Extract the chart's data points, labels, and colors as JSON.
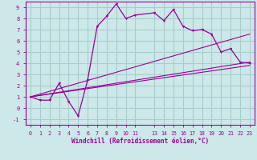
{
  "xlabel": "Windchill (Refroidissement éolien,°C)",
  "bg_color": "#cce8e8",
  "grid_color": "#aacccc",
  "line_color": "#990099",
  "xlim": [
    -0.5,
    23.5
  ],
  "ylim": [
    -1.5,
    9.5
  ],
  "xticks": [
    0,
    1,
    2,
    3,
    4,
    5,
    6,
    7,
    8,
    9,
    10,
    11,
    13,
    14,
    15,
    16,
    17,
    18,
    19,
    20,
    21,
    22,
    23
  ],
  "yticks": [
    -1,
    0,
    1,
    2,
    3,
    4,
    5,
    6,
    7,
    8,
    9
  ],
  "curve1_x": [
    0,
    1,
    2,
    3,
    4,
    5,
    6,
    7,
    8,
    9,
    10,
    11,
    13,
    14,
    15,
    16,
    17,
    18,
    19,
    20,
    21,
    22,
    23
  ],
  "curve1_y": [
    1,
    0.7,
    0.7,
    2.2,
    0.6,
    -0.7,
    2.5,
    7.3,
    8.2,
    9.3,
    8.0,
    8.3,
    8.5,
    7.8,
    8.8,
    7.3,
    6.9,
    7.0,
    6.6,
    5.0,
    5.3,
    4.1,
    4.0
  ],
  "line1_x": [
    0,
    23
  ],
  "line1_y": [
    1,
    3.8
  ],
  "line2_x": [
    0,
    23
  ],
  "line2_y": [
    1,
    4.1
  ],
  "line3_x": [
    0,
    23
  ],
  "line3_y": [
    1,
    6.6
  ]
}
